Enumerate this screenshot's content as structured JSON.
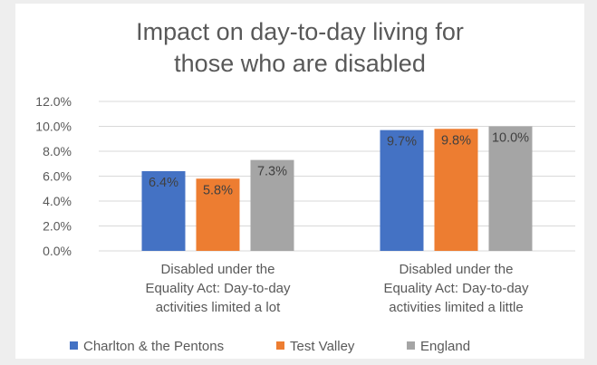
{
  "chart_data": {
    "type": "bar",
    "title_lines": [
      "Impact on day-to-day living for",
      "those who are disabled"
    ],
    "categories": [
      [
        "Disabled under the",
        "Equality Act: Day-to-day",
        "activities limited a lot"
      ],
      [
        "Disabled under the",
        "Equality Act: Day-to-day",
        "activities limited a little"
      ]
    ],
    "series": [
      {
        "name": "Charlton & the Pentons",
        "color": "#4472c4",
        "values": [
          6.4,
          9.7
        ],
        "labels": [
          "6.4%",
          "9.7%"
        ]
      },
      {
        "name": "Test Valley",
        "color": "#ed7d31",
        "values": [
          5.8,
          9.8
        ],
        "labels": [
          "5.8%",
          "9.8%"
        ]
      },
      {
        "name": "England",
        "color": "#a5a5a5",
        "values": [
          7.3,
          10.0
        ],
        "labels": [
          "7.3%",
          "10.0%"
        ]
      }
    ],
    "ylim": [
      0,
      12
    ],
    "yticks": [
      0,
      2,
      4,
      6,
      8,
      10,
      12
    ],
    "ytick_labels": [
      "0.0%",
      "2.0%",
      "4.0%",
      "6.0%",
      "8.0%",
      "10.0%",
      "12.0%"
    ],
    "grid": true,
    "legend_position": "bottom"
  }
}
